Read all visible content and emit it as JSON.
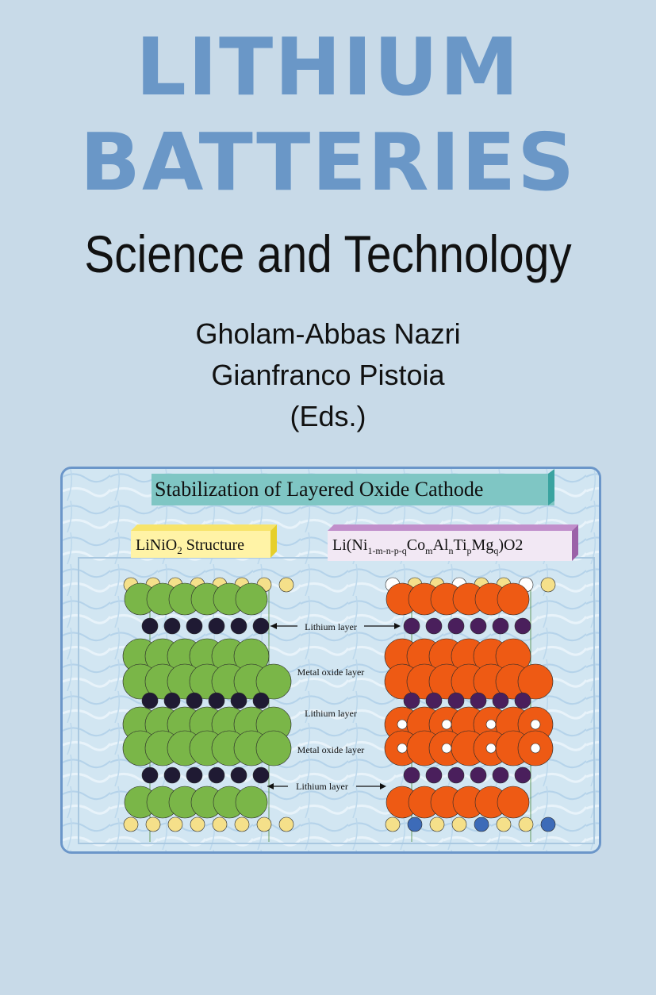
{
  "cover": {
    "title_line1": "LITHIUM",
    "title_line2": "BATTERIES",
    "subtitle": "Science and Technology",
    "editor1": "Gholam-Abbas Nazri",
    "editor2": "Gianfranco Pistoia",
    "editors_note": "(Eds.)"
  },
  "figure": {
    "heading": "Stabilization of Layered Oxide Cathode",
    "left_label_prefix": "LiNiO",
    "left_label_sub": "2",
    "left_label_suffix": " Structure",
    "right_label_a": "Li(Ni",
    "right_label_a_sub": "1-m-n-p-q",
    "right_label_b": "Co",
    "right_label_b_sub": "m",
    "right_label_c": "Al",
    "right_label_c_sub": "n",
    "right_label_d": "Ti",
    "right_label_d_sub": "p",
    "right_label_e": "Mg",
    "right_label_e_sub": "q",
    "right_label_f": ")O2",
    "layers": [
      "Lithium layer",
      "Metal oxide layer",
      "Lithium layer",
      "Metal oxide layer",
      "Lithium layer"
    ],
    "colors": {
      "left_oxide": "#7ab648",
      "lithium": "#1f1a33",
      "right_oxide": "#ee5a14",
      "right_lithium": "#4a1f5c",
      "oxygen": "#f5e08a",
      "heading_bg": "#7fc6c4",
      "left_label_bg": "#fff3a6",
      "right_label_bg": "#f2e8f4"
    }
  }
}
